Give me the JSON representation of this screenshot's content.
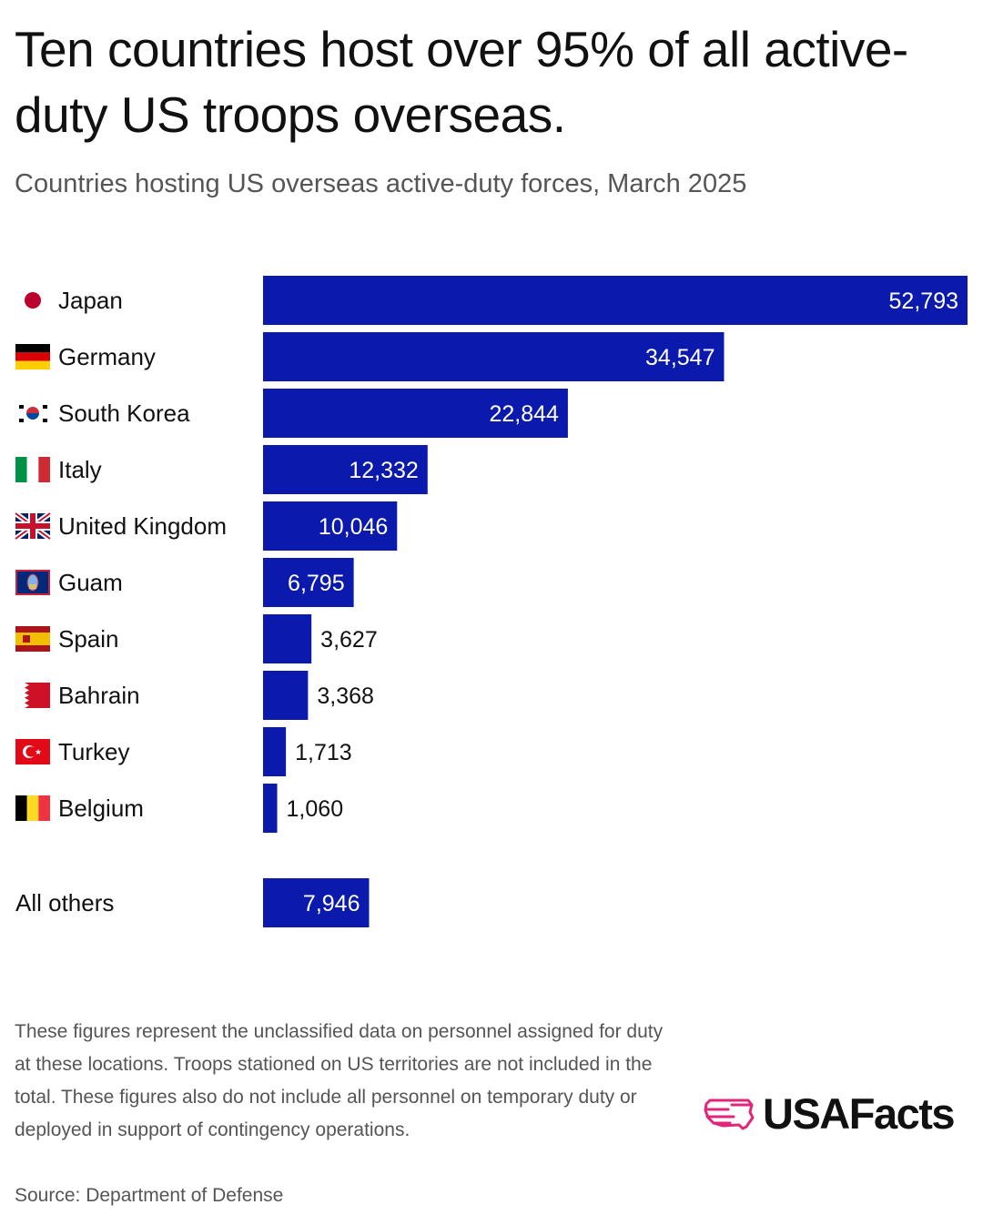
{
  "header": {
    "title": "Ten countries host over 95% of all active-duty US troops overseas.",
    "subtitle": "Countries hosting US overseas active-duty forces, March 2025"
  },
  "chart_data": {
    "type": "bar",
    "orientation": "horizontal",
    "title": "Ten countries host over 95% of all active-duty US troops overseas.",
    "subtitle": "Countries hosting US overseas active-duty forces, March 2025",
    "categories": [
      "Japan",
      "Germany",
      "South Korea",
      "Italy",
      "United Kingdom",
      "Guam",
      "Spain",
      "Bahrain",
      "Turkey",
      "Belgium",
      "All others"
    ],
    "values": [
      52793,
      34547,
      22844,
      12332,
      10046,
      6795,
      3627,
      3368,
      1713,
      1060,
      7946
    ],
    "value_labels": [
      "52,793",
      "34,547",
      "22,844",
      "12,332",
      "10,046",
      "6,795",
      "3,627",
      "3,368",
      "1,713",
      "1,060",
      "7,946"
    ],
    "flags": [
      "japan-flag",
      "germany-flag",
      "south-korea-flag",
      "italy-flag",
      "united-kingdom-flag",
      "guam-flag",
      "spain-flag",
      "bahrain-flag",
      "turkey-flag",
      "belgium-flag",
      ""
    ],
    "xlim": [
      0,
      52793
    ],
    "xlabel": "",
    "ylabel": "",
    "grid": false,
    "bar_color": "#0b1aad"
  },
  "footer": {
    "note": "These figures represent the unclassified data on personnel assigned for duty at these locations. Troops stationed on US territories are not included in the total. These figures also do not include all personnel on temporary duty or deployed in support of contingency operations.",
    "source": "Source: Department of Defense"
  },
  "brand": {
    "name": "USAFacts",
    "icon": "usa-map-icon",
    "icon_color": "#e0257a"
  }
}
